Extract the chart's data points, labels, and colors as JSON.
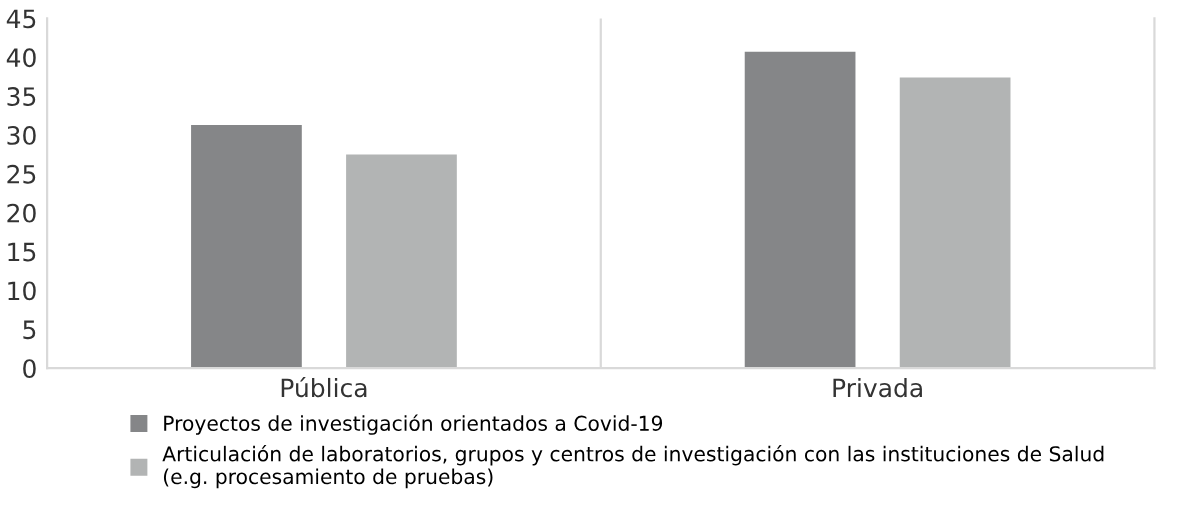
{
  "chart_data": {
    "type": "bar",
    "categories": [
      "Pública",
      "Privada"
    ],
    "series": [
      {
        "name": "Proyectos de investigación orientados a Covid-19",
        "color": "#858688",
        "values": [
          31.3,
          40.7
        ]
      },
      {
        "name": "Articulación de laboratorios, grupos y centros de investigación con las instituciones de Salud\n(e.g. procesamiento de pruebas)",
        "color": "#b2b4b4",
        "values": [
          27.5,
          37.4
        ]
      }
    ],
    "ylim": [
      0,
      45
    ],
    "yticks": [
      0,
      5,
      10,
      15,
      20,
      25,
      30,
      35,
      40,
      45
    ],
    "grid": false,
    "legend": "bottom"
  }
}
